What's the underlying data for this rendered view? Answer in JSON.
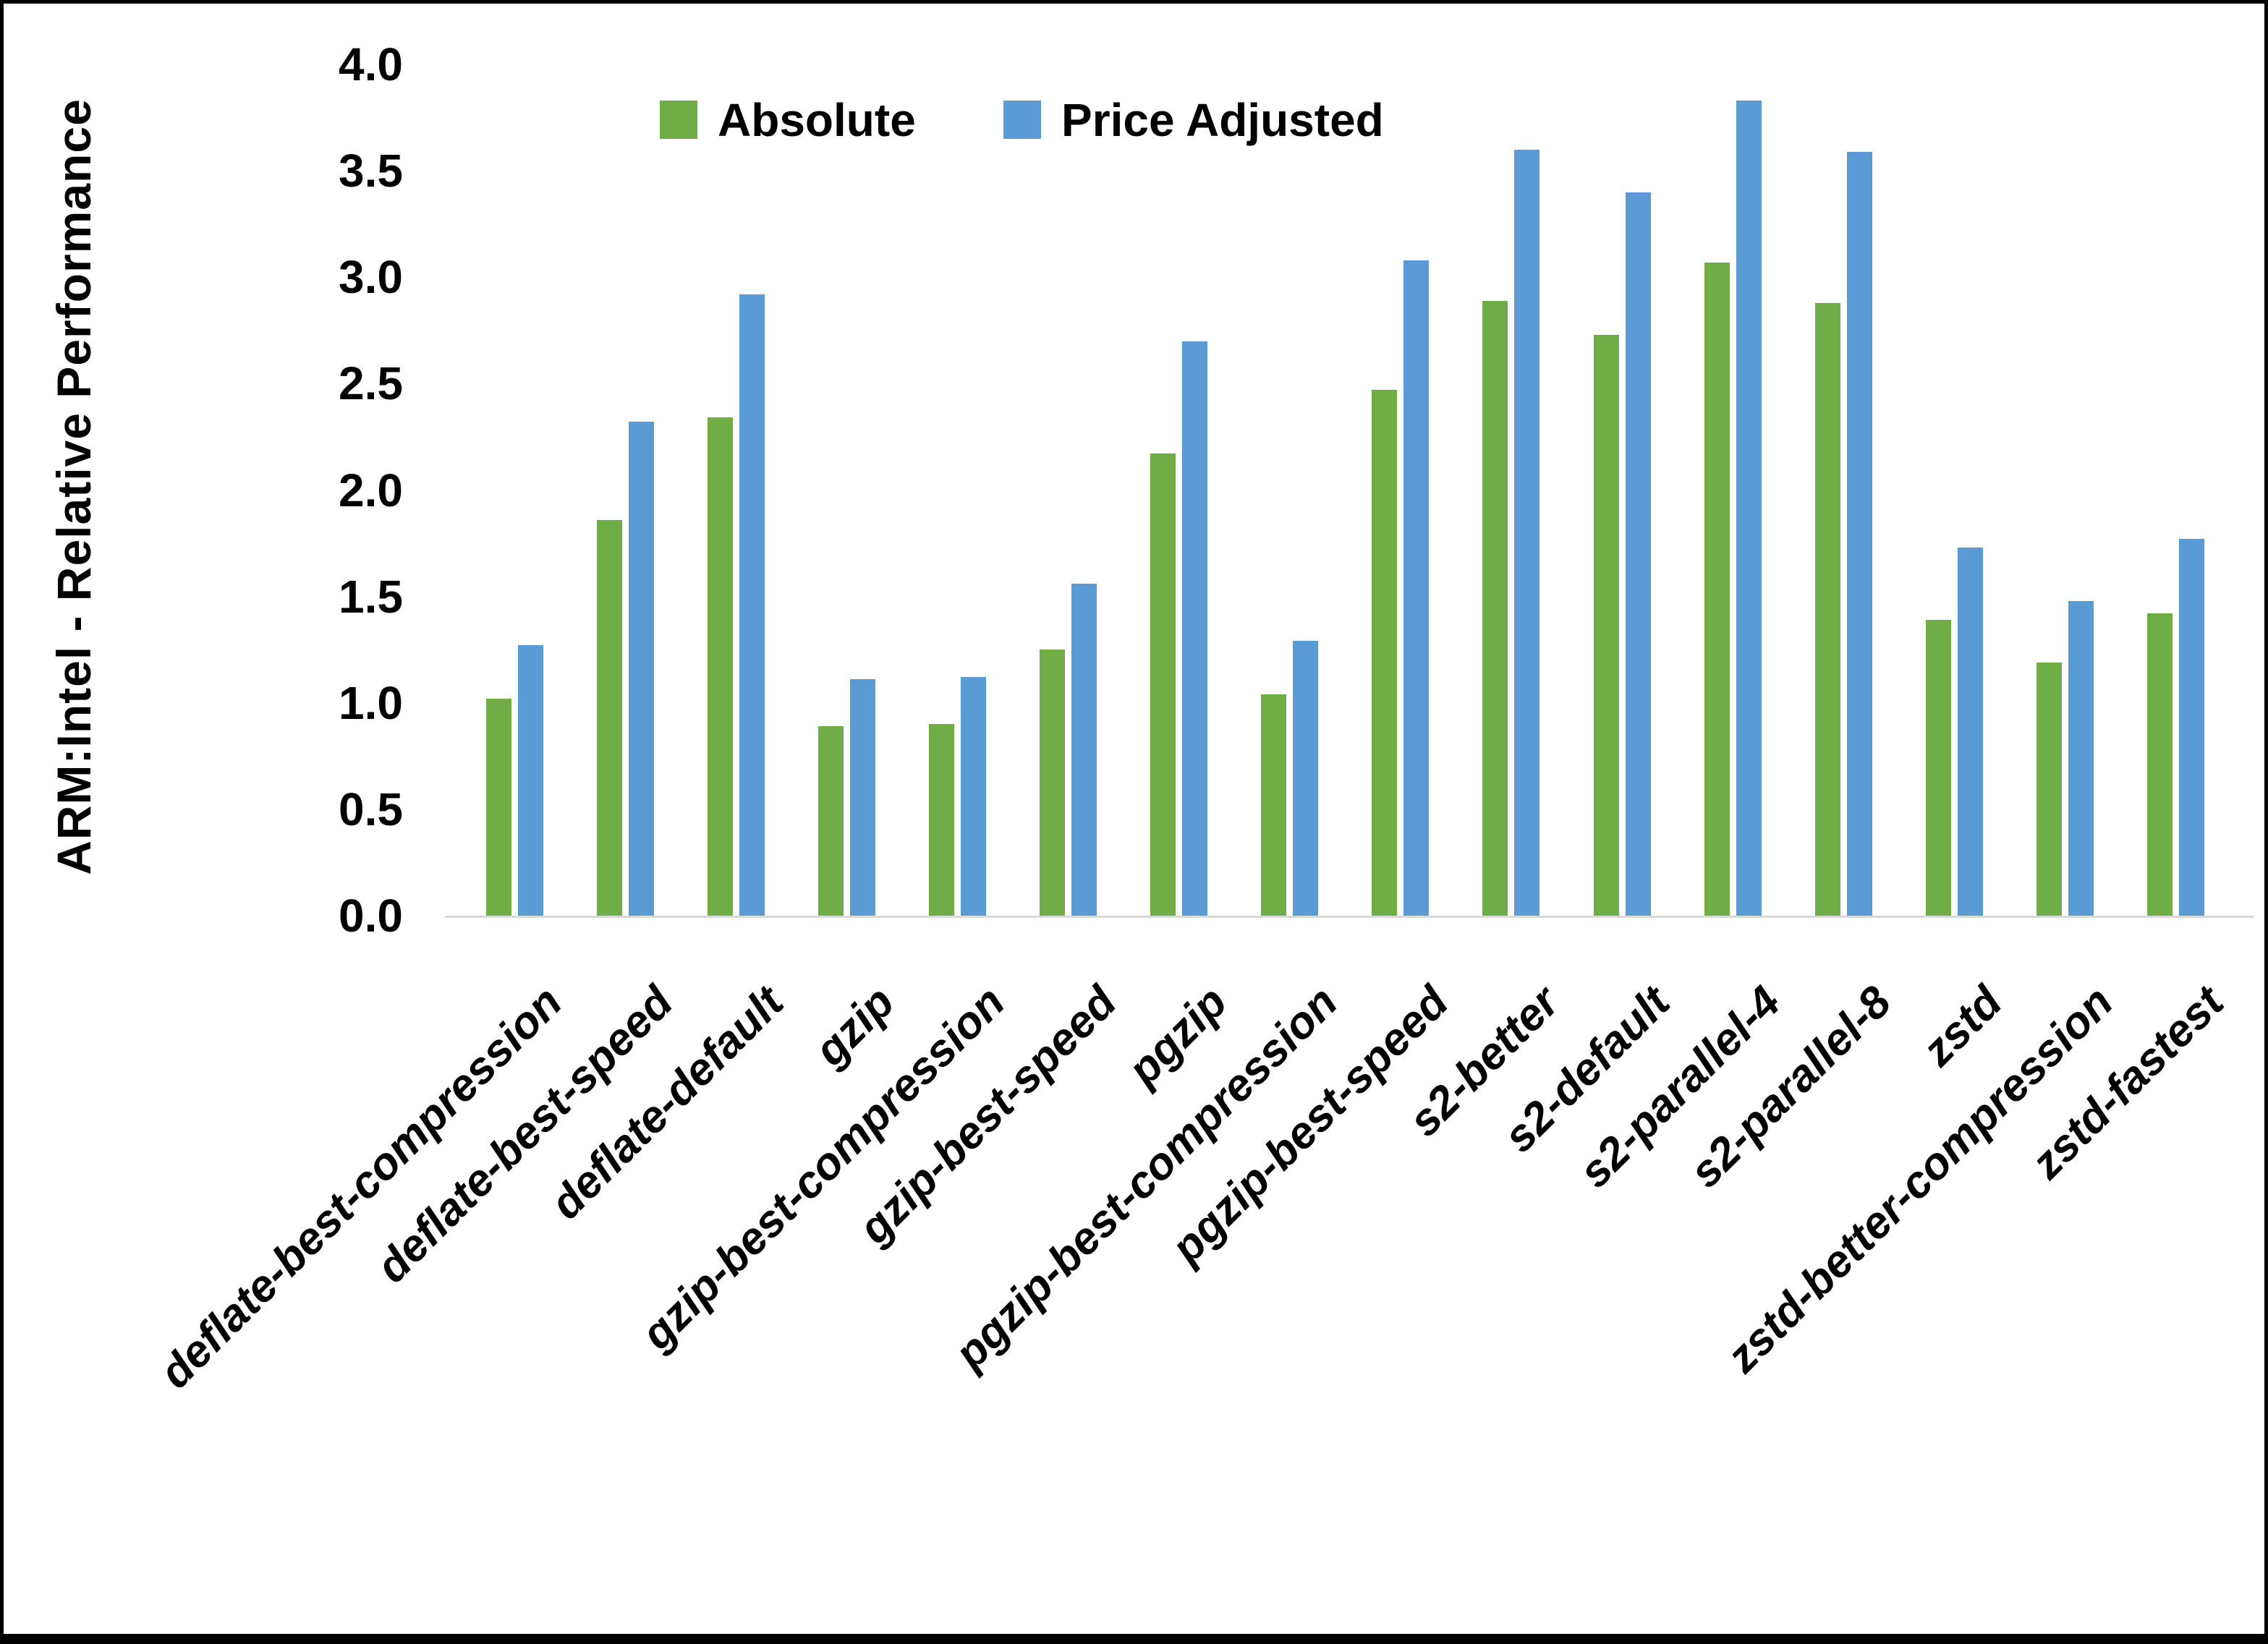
{
  "chart_data": {
    "type": "bar",
    "title": "",
    "xlabel": "",
    "ylabel": "ARM:Intel - Relative Performance",
    "ylim": [
      0.0,
      4.0
    ],
    "ytick_labels": [
      "0.0",
      "0.5",
      "1.0",
      "1.5",
      "2.0",
      "2.5",
      "3.0",
      "3.5",
      "4.0"
    ],
    "grid": false,
    "legend_position": "top-center",
    "categories": [
      "deflate-best-compression",
      "deflate-best-speed",
      "deflate-default",
      "gzip",
      "gzip-best-compression",
      "gzip-best-speed",
      "pgzip",
      "pgzip-best-compression",
      "pgzip-best-speed",
      "s2-better",
      "s2-default",
      "s2-parallel-4",
      "s2-parallel-8",
      "zstd",
      "zstd-better-compression",
      "zstd-fastest"
    ],
    "series": [
      {
        "name": "Absolute",
        "color": "#70AD47",
        "values": [
          1.02,
          1.86,
          2.34,
          0.89,
          0.9,
          1.25,
          2.17,
          1.04,
          2.47,
          2.89,
          2.73,
          3.07,
          2.88,
          1.39,
          1.19,
          1.42
        ]
      },
      {
        "name": "Price Adjusted",
        "color": "#5B9BD5",
        "values": [
          1.27,
          2.32,
          2.92,
          1.11,
          1.12,
          1.56,
          2.7,
          1.29,
          3.08,
          3.6,
          3.4,
          3.83,
          3.59,
          1.73,
          1.48,
          1.77
        ]
      }
    ],
    "axis_line_color": "#d9d9d9",
    "text_color": "#000000",
    "frame_color": "#000000",
    "background_color": "#ffffff"
  }
}
